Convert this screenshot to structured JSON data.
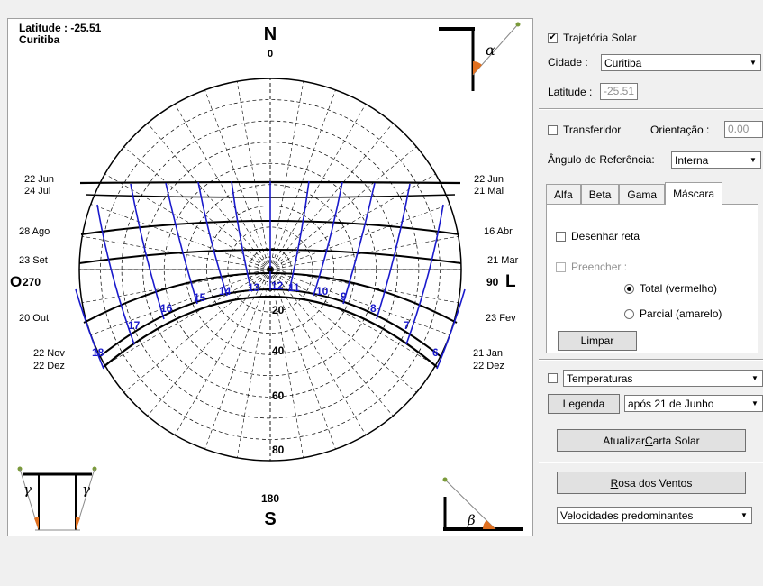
{
  "chart": {
    "latitude_text": "Latitude : -25.51",
    "city_text": "Curitiba",
    "north_letter": "N",
    "north_deg": "0",
    "south_letter": "S",
    "south_deg": "180",
    "west_letter": "O",
    "west_deg": "270",
    "east_letter": "L",
    "east_deg": "90",
    "alpha": "α",
    "beta": "β",
    "gamma": "γ",
    "altitude_labels": [
      "20",
      "40",
      "60",
      "80"
    ],
    "left_dates": [
      "22 Jun",
      "24 Jul",
      "28 Ago",
      "23 Set",
      "20 Out",
      "22 Nov",
      "22 Dez"
    ],
    "right_dates": [
      "22 Jun",
      "21 Mai",
      "16 Abr",
      "21 Mar",
      "23 Fev",
      "21 Jan",
      "22 Dez"
    ],
    "hour_labels": [
      "18",
      "17",
      "16",
      "15",
      "14",
      "13",
      "12",
      "11",
      "10",
      "9",
      "8",
      "7",
      "6"
    ],
    "colors": {
      "hour_lines": "#1a1acc",
      "day_lines": "#000000",
      "grid": "#000000",
      "marker": "#e07020"
    }
  },
  "panel": {
    "trajetoria_label": "Trajetória Solar",
    "trajetoria_checked": true,
    "cidade_label": "Cidade :",
    "cidade_value": "Curitiba",
    "latitude_label": "Latitude :",
    "latitude_value": "-25.51",
    "transferidor_label": "Transferidor",
    "orientacao_label": "Orientação :",
    "orientacao_value": "0.00",
    "angulo_label": "Ângulo de Referência:",
    "angulo_value": "Interna",
    "tabs": [
      "Alfa",
      "Beta",
      "Gama",
      "Máscara"
    ],
    "active_tab": "Máscara",
    "desenhar_label": "Desenhar reta",
    "preencher_label": "Preencher :",
    "total_label": "Total (vermelho)",
    "parcial_label": "Parcial (amarelo)",
    "limpar_label": "Limpar",
    "temperaturas_value": "Temperaturas",
    "legenda_label": "Legenda",
    "periodo_value": "após 21 de Junho",
    "atualizar_pre": "Atualizar ",
    "atualizar_u": "C",
    "atualizar_post": "arta Solar",
    "rosa_u": "R",
    "rosa_post": "osa dos Ventos",
    "velocidades_value": "Velocidades predominantes"
  }
}
